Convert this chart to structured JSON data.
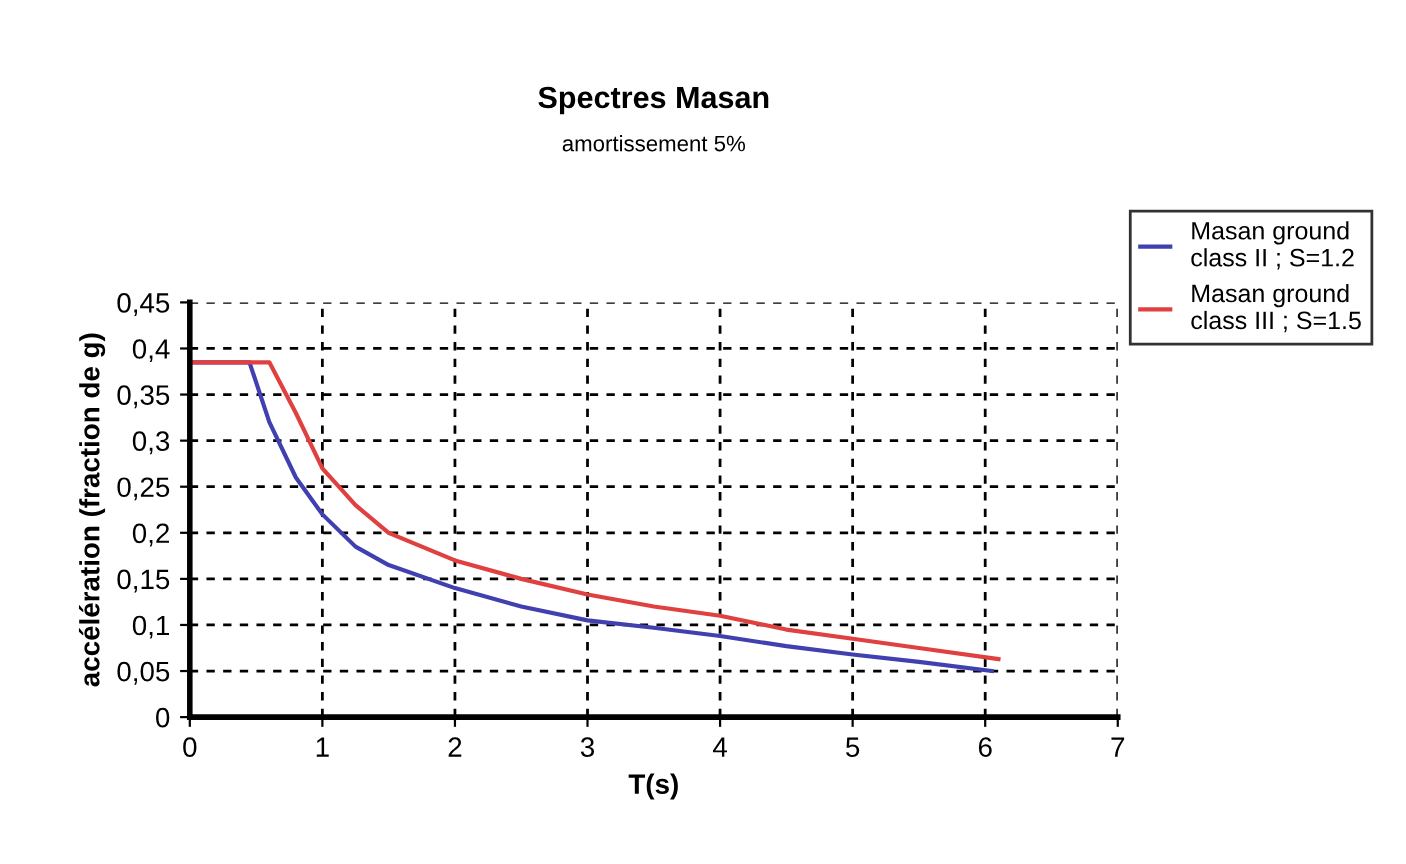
{
  "chart_data": {
    "type": "line",
    "title": "Spectres Masan",
    "subtitle": "amortissement 5%",
    "xlabel": "T(s)",
    "ylabel": "accélération (fraction de g)",
    "xlim": [
      0,
      7
    ],
    "xticks": [
      0,
      1,
      2,
      3,
      4,
      5,
      6,
      7
    ],
    "ylim": [
      0,
      0.45
    ],
    "yticks": [
      {
        "value": 0,
        "label": "0"
      },
      {
        "value": 0.05,
        "label": "0,05"
      },
      {
        "value": 0.1,
        "label": "0,1"
      },
      {
        "value": 0.15,
        "label": "0,15"
      },
      {
        "value": 0.2,
        "label": "0,2"
      },
      {
        "value": 0.25,
        "label": "0,25"
      },
      {
        "value": 0.3,
        "label": "0,3"
      },
      {
        "value": 0.35,
        "label": "0,35"
      },
      {
        "value": 0.4,
        "label": "0,4"
      },
      {
        "value": 0.45,
        "label": "0,45"
      }
    ],
    "grid": true,
    "legend": "top right",
    "marker": "none",
    "line_style": "solid",
    "series": [
      {
        "name": "Masan ground class II ; S=1.2",
        "color": "#4040b0",
        "x": [
          0,
          0.45,
          0.6,
          0.8,
          1,
          1.25,
          1.5,
          2,
          2.5,
          3,
          3.5,
          4,
          4.5,
          5,
          5.5,
          6.05
        ],
        "values": [
          0.385,
          0.385,
          0.32,
          0.26,
          0.22,
          0.185,
          0.165,
          0.14,
          0.12,
          0.105,
          0.097,
          0.088,
          0.077,
          0.068,
          0.06,
          0.05
        ]
      },
      {
        "name": "Masan ground class III ; S=1.5",
        "color": "#e04040",
        "x": [
          0,
          0.6,
          0.8,
          1,
          1.25,
          1.5,
          2,
          2.5,
          3,
          3.5,
          4,
          4.5,
          5,
          5.5,
          6.1
        ],
        "values": [
          0.385,
          0.385,
          0.33,
          0.27,
          0.23,
          0.2,
          0.17,
          0.15,
          0.133,
          0.12,
          0.11,
          0.095,
          0.085,
          0.075,
          0.063
        ]
      }
    ]
  }
}
